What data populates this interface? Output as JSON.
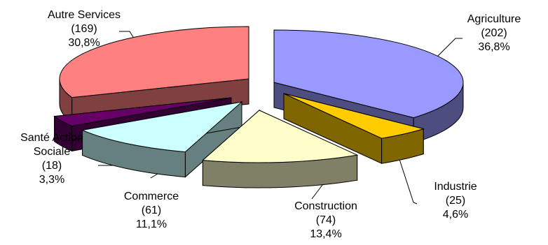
{
  "chart_data": {
    "type": "pie",
    "style": "3d-exploded",
    "categories": [
      "Agriculture",
      "Industrie",
      "Construction",
      "Commerce",
      "Santé Action Sociale",
      "Autre Services"
    ],
    "values": [
      202,
      25,
      74,
      61,
      18,
      169
    ],
    "percents": [
      "36,8%",
      "4,6%",
      "13,4%",
      "11,1%",
      "3,3%",
      "30,8%"
    ],
    "label_lines": {
      "agriculture": [
        "Agriculture",
        "(202)",
        "36,8%"
      ],
      "industrie": [
        "Industrie",
        "(25)",
        "4,6%"
      ],
      "construction": [
        "Construction",
        "(74)",
        "13,4%"
      ],
      "commerce": [
        "Commerce",
        "(61)",
        "11,1%"
      ],
      "sante": [
        "Santé Action",
        "Sociale",
        "(18)",
        "3,3%"
      ],
      "autres": [
        "Autre Services",
        "(169)",
        "30,8%"
      ]
    },
    "colors": {
      "agriculture": [
        "#9999ff",
        "#4d4d80"
      ],
      "industrie": [
        "#ffcc00",
        "#806600"
      ],
      "construction": [
        "#ffffcc",
        "#808066"
      ],
      "commerce": [
        "#ccffff",
        "#668080"
      ],
      "sante": [
        "#660066",
        "#330033"
      ],
      "autres": [
        "#ff8080",
        "#804040"
      ]
    },
    "title": "",
    "legend": "none"
  }
}
